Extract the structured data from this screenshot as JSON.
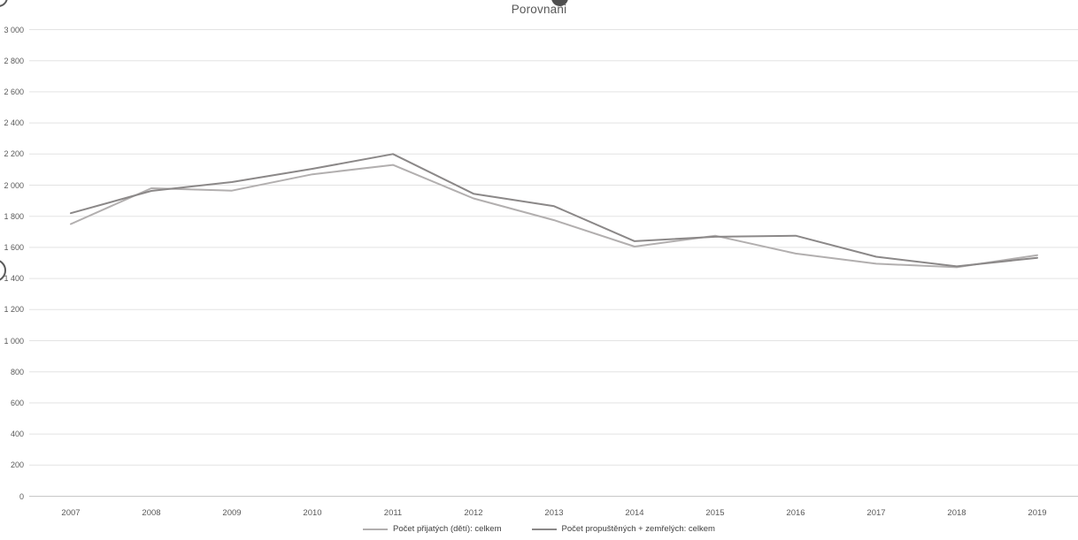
{
  "chart_data": {
    "type": "line",
    "title": "Porovnani",
    "x": [
      2007,
      2008,
      2009,
      2010,
      2011,
      2012,
      2013,
      2014,
      2015,
      2016,
      2017,
      2018,
      2019
    ],
    "series": [
      {
        "name": "Počet přijatých (dětí): celkem",
        "color": "#b2afaf",
        "values": [
          1750,
          1980,
          1965,
          2070,
          2130,
          1915,
          1775,
          1605,
          1675,
          1560,
          1495,
          1472,
          1550
        ]
      },
      {
        "name": "Počet propuštěných + zemřelých: celkem",
        "color": "#8b8888",
        "values": [
          1820,
          1963,
          2020,
          2105,
          2200,
          1945,
          1865,
          1640,
          1668,
          1675,
          1540,
          1478,
          1533
        ]
      }
    ],
    "xlabel": "",
    "ylabel": "",
    "ylim": [
      0,
      3000
    ],
    "ytick_step": 200,
    "ytick_labels": [
      "0",
      "200",
      "400",
      "600",
      "800",
      "1 000",
      "1 200",
      "1 400",
      "1 600",
      "1 800",
      "2 000",
      "2 200",
      "2 400",
      "2 600",
      "2 800",
      "3 000"
    ],
    "grid": true,
    "legend_position": "bottom"
  },
  "colors": {
    "gridline": "#e3e3e3",
    "axis_line": "#c7c7c7",
    "title_text": "#595959",
    "tick_text": "#595959",
    "legend_text": "#404040"
  },
  "artifacts": {
    "top_center": "clipped-dark-circle-glyph",
    "left_edge": "clipped-ring-glyph",
    "top_left_corner": "clipped-arc-glyph"
  }
}
